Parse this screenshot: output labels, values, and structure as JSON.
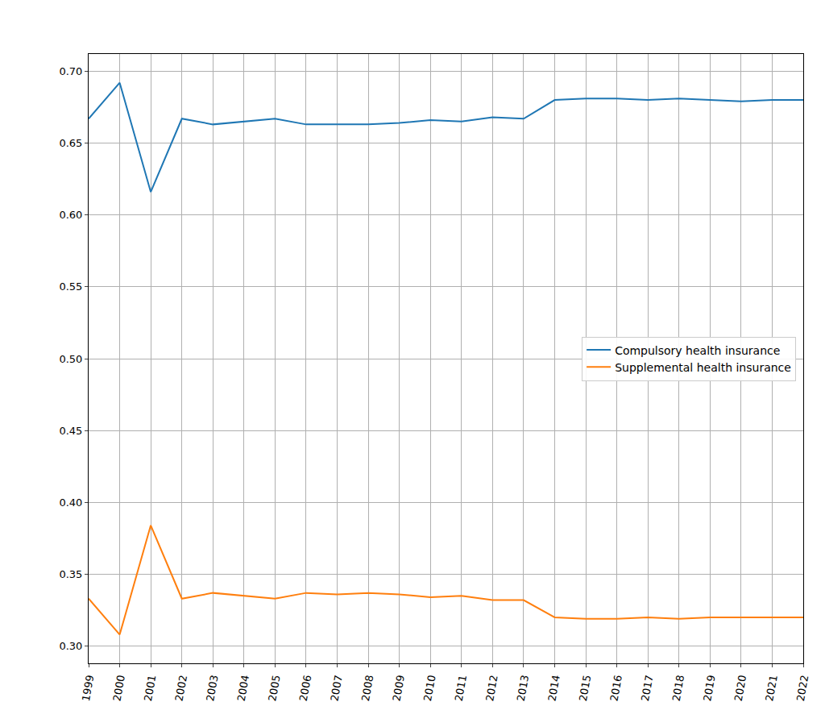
{
  "chart_data": {
    "type": "line",
    "categories": [
      "1999",
      "2000",
      "2001",
      "2002",
      "2003",
      "2004",
      "2005",
      "2006",
      "2007",
      "2008",
      "2009",
      "2010",
      "2011",
      "2012",
      "2013",
      "2014",
      "2015",
      "2016",
      "2017",
      "2018",
      "2019",
      "2020",
      "2021",
      "2022"
    ],
    "series": [
      {
        "name": "Compulsory health insurance",
        "color": "#1f77b4",
        "values": [
          0.667,
          0.692,
          0.616,
          0.667,
          0.663,
          0.665,
          0.667,
          0.663,
          0.663,
          0.663,
          0.664,
          0.666,
          0.665,
          0.668,
          0.667,
          0.68,
          0.681,
          0.681,
          0.68,
          0.681,
          0.68,
          0.679,
          0.68,
          0.68
        ]
      },
      {
        "name": "Supplemental health insurance",
        "color": "#ff7f0e",
        "values": [
          0.333,
          0.308,
          0.384,
          0.333,
          0.337,
          0.335,
          0.333,
          0.337,
          0.336,
          0.337,
          0.336,
          0.334,
          0.335,
          0.332,
          0.332,
          0.32,
          0.319,
          0.319,
          0.32,
          0.319,
          0.32,
          0.32,
          0.32,
          0.32
        ]
      }
    ],
    "ylim": [
      0.288,
      0.712
    ],
    "yticks": [
      {
        "value": 0.3,
        "label": "0.30"
      },
      {
        "value": 0.35,
        "label": "0.35"
      },
      {
        "value": 0.4,
        "label": "0.40"
      },
      {
        "value": 0.45,
        "label": "0.45"
      },
      {
        "value": 0.5,
        "label": "0.50"
      },
      {
        "value": 0.55,
        "label": "0.55"
      },
      {
        "value": 0.6,
        "label": "0.60"
      },
      {
        "value": 0.65,
        "label": "0.65"
      },
      {
        "value": 0.7,
        "label": "0.70"
      }
    ],
    "grid": true,
    "legend": "center right"
  }
}
